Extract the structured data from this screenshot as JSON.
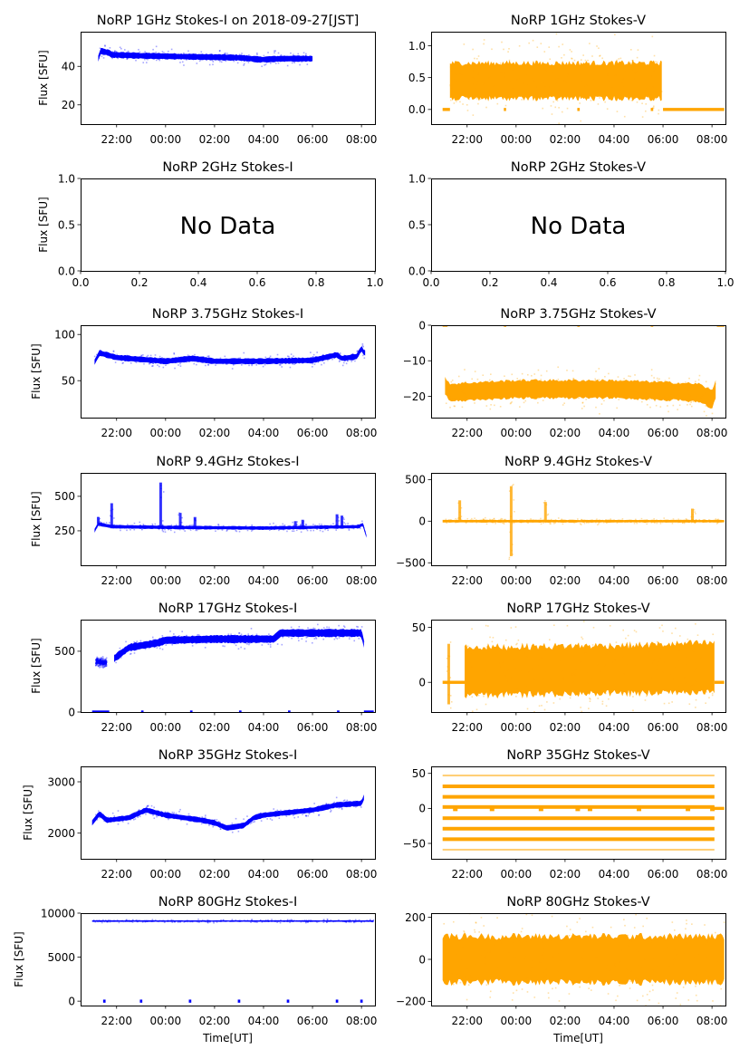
{
  "figure": {
    "suptitle_date": "2018-09-27[JST]",
    "xlabel": "Time[UT]",
    "ylabel": "Flux [SFU]",
    "no_data_text": "No Data",
    "colors": {
      "stokes_i": "#0000ff",
      "stokes_v": "#ffa500",
      "axis": "#000000"
    }
  },
  "chart_data": [
    {
      "type": "scatter",
      "title": "NoRP 1GHz Stokes-I on 2018-09-27[JST]",
      "ylabel": "Flux [SFU]",
      "xlabel": "",
      "color": "#0000ff",
      "ylim": [
        10,
        58
      ],
      "yticks": [
        20,
        40
      ],
      "xlim_hours": [
        -3.47,
        8.55
      ],
      "xtick_labels": [
        "22:00",
        "00:00",
        "02:00",
        "04:00",
        "06:00",
        "08:00"
      ],
      "segments": [
        {
          "t0": -2.75,
          "t1": 6.0,
          "base": [
            [
              -2.75,
              44
            ],
            [
              -2.65,
              48
            ],
            [
              -2.3,
              47
            ],
            [
              -2.2,
              46
            ],
            [
              -1,
              45.5
            ],
            [
              1,
              45
            ],
            [
              3,
              44.5
            ],
            [
              3.9,
              43.5
            ],
            [
              4.8,
              44
            ],
            [
              6,
              44
            ]
          ],
          "spread": 1.5
        }
      ],
      "zeros": []
    },
    {
      "type": "scatter",
      "title": "NoRP 1GHz Stokes-V",
      "ylabel": "",
      "xlabel": "",
      "color": "#ffa500",
      "ylim": [
        -0.23,
        1.22
      ],
      "yticks": [
        0.0,
        0.5,
        1.0
      ],
      "ytick_labels": [
        "0.0",
        "0.5",
        "1.0"
      ],
      "xlim_hours": [
        -3.47,
        8.55
      ],
      "xtick_labels": [
        "22:00",
        "00:00",
        "02:00",
        "04:00",
        "06:00",
        "08:00"
      ],
      "segments": [
        {
          "t0": -2.7,
          "t1": 5.95,
          "base": [
            [
              -2.7,
              0.45
            ],
            [
              5.95,
              0.45
            ]
          ],
          "spread": 0.28
        }
      ],
      "zeros": [
        [
          -3.0,
          -2.7
        ],
        [
          -0.5,
          -0.45
        ],
        [
          2.5,
          2.6
        ],
        [
          5.5,
          5.6
        ],
        [
          6.0,
          8.5
        ]
      ]
    },
    {
      "type": "empty",
      "title": "NoRP 2GHz Stokes-I",
      "ylabel": "Flux [SFU]",
      "xlabel": "",
      "ylim": [
        0,
        1
      ],
      "xlim": [
        0,
        1
      ],
      "yticks": [
        0.0,
        0.5,
        1.0
      ],
      "ytick_labels": [
        "0.0",
        "0.5",
        "1.0"
      ],
      "xticks": [
        0.0,
        0.2,
        0.4,
        0.6,
        0.8,
        1.0
      ],
      "xtick_labels": [
        "0.0",
        "0.2",
        "0.4",
        "0.6",
        "0.8",
        "1.0"
      ],
      "annotation": "No Data"
    },
    {
      "type": "empty",
      "title": "NoRP 2GHz Stokes-V",
      "ylabel": "",
      "xlabel": "",
      "ylim": [
        0,
        1
      ],
      "xlim": [
        0,
        1
      ],
      "yticks": [
        0.0,
        0.5,
        1.0
      ],
      "ytick_labels": [
        "0.0",
        "0.5",
        "1.0"
      ],
      "xticks": [
        0.0,
        0.2,
        0.4,
        0.6,
        0.8,
        1.0
      ],
      "xtick_labels": [
        "0.0",
        "0.2",
        "0.4",
        "0.6",
        "0.8",
        "1.0"
      ],
      "annotation": "No Data"
    },
    {
      "type": "scatter",
      "title": "NoRP 3.75GHz Stokes-I",
      "ylabel": "Flux [SFU]",
      "xlabel": "",
      "color": "#0000ff",
      "ylim": [
        10,
        110
      ],
      "yticks": [
        50,
        100
      ],
      "xlim_hours": [
        -3.47,
        8.55
      ],
      "xtick_labels": [
        "22:00",
        "00:00",
        "02:00",
        "04:00",
        "06:00",
        "08:00"
      ],
      "segments": [
        {
          "t0": -2.9,
          "t1": 8.15,
          "base": [
            [
              -2.9,
              70
            ],
            [
              -2.7,
              80
            ],
            [
              -2,
              75
            ],
            [
              0,
              71
            ],
            [
              1.1,
              74
            ],
            [
              2,
              71
            ],
            [
              4,
              71
            ],
            [
              6,
              72
            ],
            [
              7,
              78
            ],
            [
              7.2,
              74
            ],
            [
              7.8,
              76
            ],
            [
              8.0,
              85
            ],
            [
              8.1,
              80
            ]
          ],
          "spread": 3
        }
      ],
      "zeros": []
    },
    {
      "type": "scatter",
      "title": "NoRP 3.75GHz Stokes-V",
      "ylabel": "",
      "xlabel": "",
      "color": "#ffa500",
      "ylim": [
        -26,
        0
      ],
      "yticks": [
        -20,
        -10,
        0
      ],
      "ytick_labels": [
        "−20",
        "−10",
        "0"
      ],
      "xlim_hours": [
        -3.47,
        8.55
      ],
      "xtick_labels": [
        "22:00",
        "00:00",
        "02:00",
        "04:00",
        "06:00",
        "08:00"
      ],
      "segments": [
        {
          "t0": -2.9,
          "t1": 8.15,
          "base": [
            [
              -2.9,
              -17
            ],
            [
              -2.7,
              -19
            ],
            [
              -1.5,
              -18.5
            ],
            [
              0,
              -18
            ],
            [
              4,
              -18
            ],
            [
              6,
              -18.5
            ],
            [
              7.5,
              -19
            ],
            [
              8.0,
              -21
            ],
            [
              8.15,
              -18
            ]
          ],
          "spread": 2.5
        }
      ],
      "zeros": [
        [
          -3.0,
          -2.8
        ],
        [
          -0.5,
          -0.4
        ],
        [
          2.5,
          2.6
        ],
        [
          5.5,
          5.6
        ],
        [
          8.2,
          8.5
        ]
      ]
    },
    {
      "type": "scatter",
      "title": "NoRP 9.4GHz Stokes-I",
      "ylabel": "Flux [SFU]",
      "xlabel": "",
      "color": "#0000ff",
      "ylim": [
        0,
        670
      ],
      "yticks": [
        250,
        500
      ],
      "xlim_hours": [
        -3.47,
        8.55
      ],
      "xtick_labels": [
        "22:00",
        "00:00",
        "02:00",
        "04:00",
        "06:00",
        "08:00"
      ],
      "segments": [
        {
          "t0": -2.9,
          "t1": 8.2,
          "base": [
            [
              -2.9,
              250
            ],
            [
              -2.75,
              300
            ],
            [
              -2.2,
              280
            ],
            [
              0,
              275
            ],
            [
              4,
              270
            ],
            [
              7.9,
              280
            ],
            [
              8.05,
              300
            ],
            [
              8.2,
              210
            ]
          ],
          "spread": 12
        }
      ],
      "spikes": [
        [
          -2.75,
          350
        ],
        [
          -2.2,
          450
        ],
        [
          -0.2,
          600
        ],
        [
          0.6,
          380
        ],
        [
          1.2,
          350
        ],
        [
          5.3,
          320
        ],
        [
          5.6,
          330
        ],
        [
          7.0,
          370
        ],
        [
          7.2,
          360
        ]
      ],
      "zeros": []
    },
    {
      "type": "scatter",
      "title": "NoRP 9.4GHz Stokes-V",
      "ylabel": "",
      "xlabel": "",
      "color": "#ffa500",
      "ylim": [
        -530,
        580
      ],
      "yticks": [
        -500,
        0,
        500
      ],
      "ytick_labels": [
        "−500",
        "0",
        "500"
      ],
      "xlim_hours": [
        -3.47,
        8.55
      ],
      "xtick_labels": [
        "22:00",
        "00:00",
        "02:00",
        "04:00",
        "06:00",
        "08:00"
      ],
      "segments": [
        {
          "t0": -3.0,
          "t1": 8.5,
          "base": [
            [
              -3.0,
              0
            ],
            [
              8.5,
              0
            ]
          ],
          "spread": 15
        }
      ],
      "spikes": [
        [
          -2.3,
          250
        ],
        [
          -0.2,
          420
        ],
        [
          -0.2,
          -420
        ],
        [
          1.2,
          230
        ],
        [
          7.2,
          150
        ]
      ],
      "zeros": []
    },
    {
      "type": "scatter",
      "title": "NoRP 17GHz Stokes-I",
      "ylabel": "Flux [SFU]",
      "xlabel": "",
      "color": "#0000ff",
      "ylim": [
        0,
        760
      ],
      "yticks": [
        0,
        500
      ],
      "xlim_hours": [
        -3.47,
        8.55
      ],
      "xtick_labels": [
        "22:00",
        "00:00",
        "02:00",
        "04:00",
        "06:00",
        "08:00"
      ],
      "segments": [
        {
          "t0": -2.85,
          "t1": -2.4,
          "base": [
            [
              -2.85,
              415
            ],
            [
              -2.4,
              405
            ]
          ],
          "spread": 15
        },
        {
          "t0": -2.1,
          "t1": 8.1,
          "base": [
            [
              -2.1,
              440
            ],
            [
              -1.5,
              530
            ],
            [
              -0.3,
              570
            ],
            [
              0,
              590
            ],
            [
              2,
              600
            ],
            [
              4.4,
              600
            ],
            [
              4.7,
              650
            ],
            [
              8,
              650
            ],
            [
              8.1,
              560
            ]
          ],
          "spread": 30
        }
      ],
      "zeros": [
        [
          -3.0,
          -2.3
        ],
        [
          -1.0,
          -0.9
        ],
        [
          1.0,
          1.1
        ],
        [
          3.0,
          3.1
        ],
        [
          5.0,
          5.1
        ],
        [
          7.0,
          7.1
        ],
        [
          8.1,
          8.5
        ]
      ]
    },
    {
      "type": "scatter",
      "title": "NoRP 17GHz Stokes-V",
      "ylabel": "",
      "xlabel": "",
      "color": "#ffa500",
      "ylim": [
        -27,
        57
      ],
      "yticks": [
        0,
        50
      ],
      "ytick_labels": [
        "0",
        "50"
      ],
      "xlim_hours": [
        -3.47,
        8.55
      ],
      "xtick_labels": [
        "22:00",
        "00:00",
        "02:00",
        "04:00",
        "06:00",
        "08:00"
      ],
      "segments": [
        {
          "t0": -2.1,
          "t1": 8.1,
          "base": [
            [
              -2.1,
              10
            ],
            [
              5,
              12
            ],
            [
              8.1,
              14
            ]
          ],
          "spread": 22
        }
      ],
      "zeros": [
        [
          -3.0,
          -2.1
        ],
        [
          8.1,
          8.5
        ]
      ],
      "spikes": [
        [
          -2.75,
          35
        ],
        [
          -2.75,
          -20
        ]
      ]
    },
    {
      "type": "scatter",
      "title": "NoRP 35GHz Stokes-I",
      "ylabel": "Flux [SFU]",
      "xlabel": "",
      "color": "#0000ff",
      "ylim": [
        1500,
        3300
      ],
      "yticks": [
        2000,
        3000
      ],
      "xlim_hours": [
        -3.47,
        8.55
      ],
      "xtick_labels": [
        "22:00",
        "00:00",
        "02:00",
        "04:00",
        "06:00",
        "08:00"
      ],
      "segments": [
        {
          "t0": -3.0,
          "t1": 8.1,
          "base": [
            [
              -3.0,
              2200
            ],
            [
              -2.7,
              2380
            ],
            [
              -2.4,
              2250
            ],
            [
              -1.5,
              2300
            ],
            [
              -0.8,
              2450
            ],
            [
              0,
              2350
            ],
            [
              1.5,
              2250
            ],
            [
              2.0,
              2200
            ],
            [
              2.5,
              2100
            ],
            [
              3.2,
              2150
            ],
            [
              3.6,
              2300
            ],
            [
              4,
              2350
            ],
            [
              6,
              2450
            ],
            [
              7,
              2550
            ],
            [
              8,
              2580
            ],
            [
              8.1,
              2700
            ]
          ],
          "spread": 50
        }
      ],
      "zeros": []
    },
    {
      "type": "scatter",
      "title": "NoRP 35GHz Stokes-V",
      "ylabel": "",
      "xlabel": "",
      "color": "#ffa500",
      "ylim": [
        -72,
        60
      ],
      "yticks": [
        -50,
        0,
        50
      ],
      "ytick_labels": [
        "−50",
        "0",
        "50"
      ],
      "xlim_hours": [
        -3.47,
        8.55
      ],
      "xtick_labels": [
        "22:00",
        "00:00",
        "02:00",
        "04:00",
        "06:00",
        "08:00"
      ],
      "levels": [
        47,
        31.5,
        16.5,
        2,
        -14,
        -29,
        -44,
        -59
      ],
      "t0": -3.0,
      "t1": 8.1,
      "zeros": [
        [
          8.1,
          8.5
        ]
      ]
    },
    {
      "type": "scatter",
      "title": "NoRP 80GHz Stokes-I",
      "ylabel": "Flux [SFU]",
      "xlabel": "Time[UT]",
      "color": "#0000ff",
      "ylim": [
        -500,
        10000
      ],
      "yticks": [
        0,
        5000,
        10000
      ],
      "xlim_hours": [
        -3.47,
        8.55
      ],
      "xtick_labels": [
        "22:00",
        "00:00",
        "02:00",
        "04:00",
        "06:00",
        "08:00"
      ],
      "segments": [
        {
          "t0": -3.0,
          "t1": 8.5,
          "base": [
            [
              -3.0,
              9100
            ],
            [
              8.5,
              9100
            ]
          ],
          "spread": 80
        }
      ],
      "zeros": [
        [
          -2.55,
          -2.45
        ],
        [
          -1.05,
          -0.95
        ],
        [
          0.95,
          1.05
        ],
        [
          2.95,
          3.05
        ],
        [
          4.95,
          5.05
        ],
        [
          6.95,
          7.05
        ],
        [
          7.95,
          8.05
        ]
      ]
    },
    {
      "type": "scatter",
      "title": "NoRP 80GHz Stokes-V",
      "ylabel": "",
      "xlabel": "Time[UT]",
      "color": "#ffa500",
      "ylim": [
        -220,
        220
      ],
      "yticks": [
        -200,
        0,
        200
      ],
      "ytick_labels": [
        "−200",
        "0",
        "200"
      ],
      "xlim_hours": [
        -3.47,
        8.55
      ],
      "xtick_labels": [
        "22:00",
        "00:00",
        "02:00",
        "04:00",
        "06:00",
        "08:00"
      ],
      "segments": [
        {
          "t0": -3.0,
          "t1": 8.5,
          "base": [
            [
              -3.0,
              0
            ],
            [
              8.5,
              0
            ]
          ],
          "spread": 110
        }
      ],
      "zeros": []
    }
  ]
}
